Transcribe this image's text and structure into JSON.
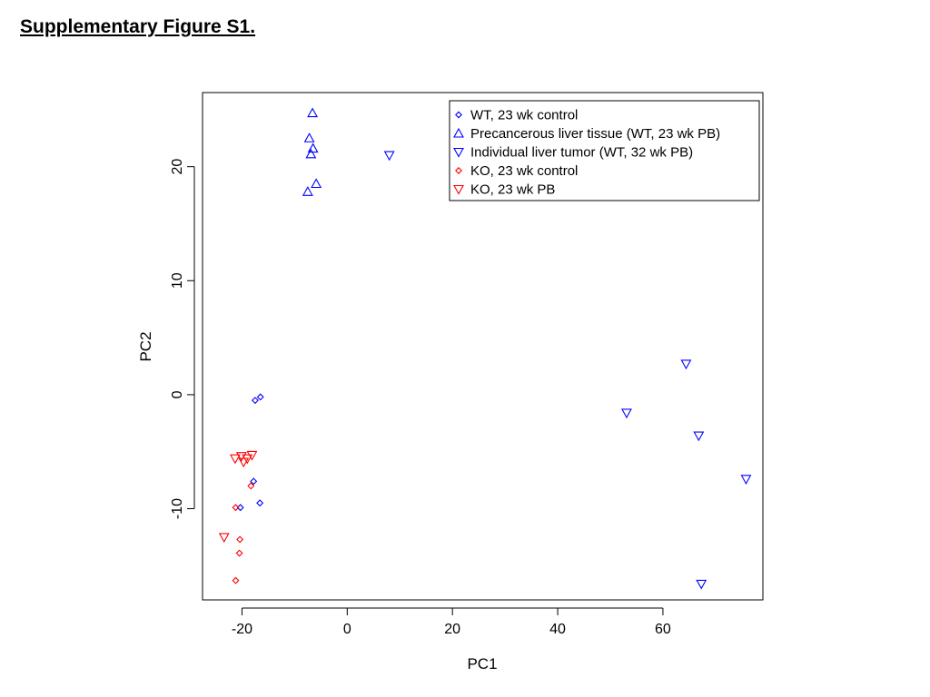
{
  "page": {
    "title": "Supplementary Figure S1."
  },
  "chart_data": {
    "type": "scatter",
    "xlabel": "PC1",
    "ylabel": "PC2",
    "xlim": [
      -27.5,
      79
    ],
    "ylim": [
      -18,
      26.5
    ],
    "x_ticks": [
      -20,
      0,
      20,
      40,
      60
    ],
    "y_ticks": [
      -10,
      0,
      10,
      20
    ],
    "x_tick_labels": [
      "-20",
      "0",
      "20",
      "40",
      "60"
    ],
    "y_tick_labels": [
      "-10",
      "0",
      "10",
      "20"
    ],
    "grid": false,
    "legend_position": "top-right",
    "series": [
      {
        "name": "WT, 23 wk control",
        "color": "#0000FF",
        "marker": "diamond",
        "points": [
          [
            -17.5,
            -0.5
          ],
          [
            -16.5,
            -0.2
          ],
          [
            -17.8,
            -7.6
          ],
          [
            -16.6,
            -9.5
          ],
          [
            -20.3,
            -9.9
          ]
        ]
      },
      {
        "name": "Precancerous liver tissue (WT, 23 wk PB)",
        "color": "#0000FF",
        "marker": "triangle-up",
        "points": [
          [
            -6.6,
            24.7
          ],
          [
            -7.2,
            22.5
          ],
          [
            -6.5,
            21.6
          ],
          [
            -6.9,
            21.1
          ],
          [
            -5.9,
            18.5
          ],
          [
            -7.5,
            17.8
          ]
        ]
      },
      {
        "name": "Individual liver tumor (WT, 32 wk PB)",
        "color": "#0000FF",
        "marker": "triangle-down",
        "points": [
          [
            8.0,
            21.0
          ],
          [
            64.4,
            2.7
          ],
          [
            53.1,
            -1.6
          ],
          [
            66.8,
            -3.6
          ],
          [
            75.8,
            -7.4
          ],
          [
            67.3,
            -16.6
          ]
        ]
      },
      {
        "name": "KO, 23 wk control",
        "color": "#FF0000",
        "marker": "diamond",
        "points": [
          [
            -18.3,
            -8.0
          ],
          [
            -21.2,
            -9.9
          ],
          [
            -20.4,
            -12.7
          ],
          [
            -20.5,
            -13.9
          ],
          [
            -21.2,
            -16.3
          ]
        ]
      },
      {
        "name": "KO, 23 wk PB",
        "color": "#FF0000",
        "marker": "triangle-down",
        "points": [
          [
            -21.3,
            -5.6
          ],
          [
            -20.1,
            -5.4
          ],
          [
            -19.7,
            -5.9
          ],
          [
            -19.0,
            -5.6
          ],
          [
            -18.1,
            -5.3
          ],
          [
            -23.4,
            -12.5
          ]
        ]
      }
    ]
  }
}
